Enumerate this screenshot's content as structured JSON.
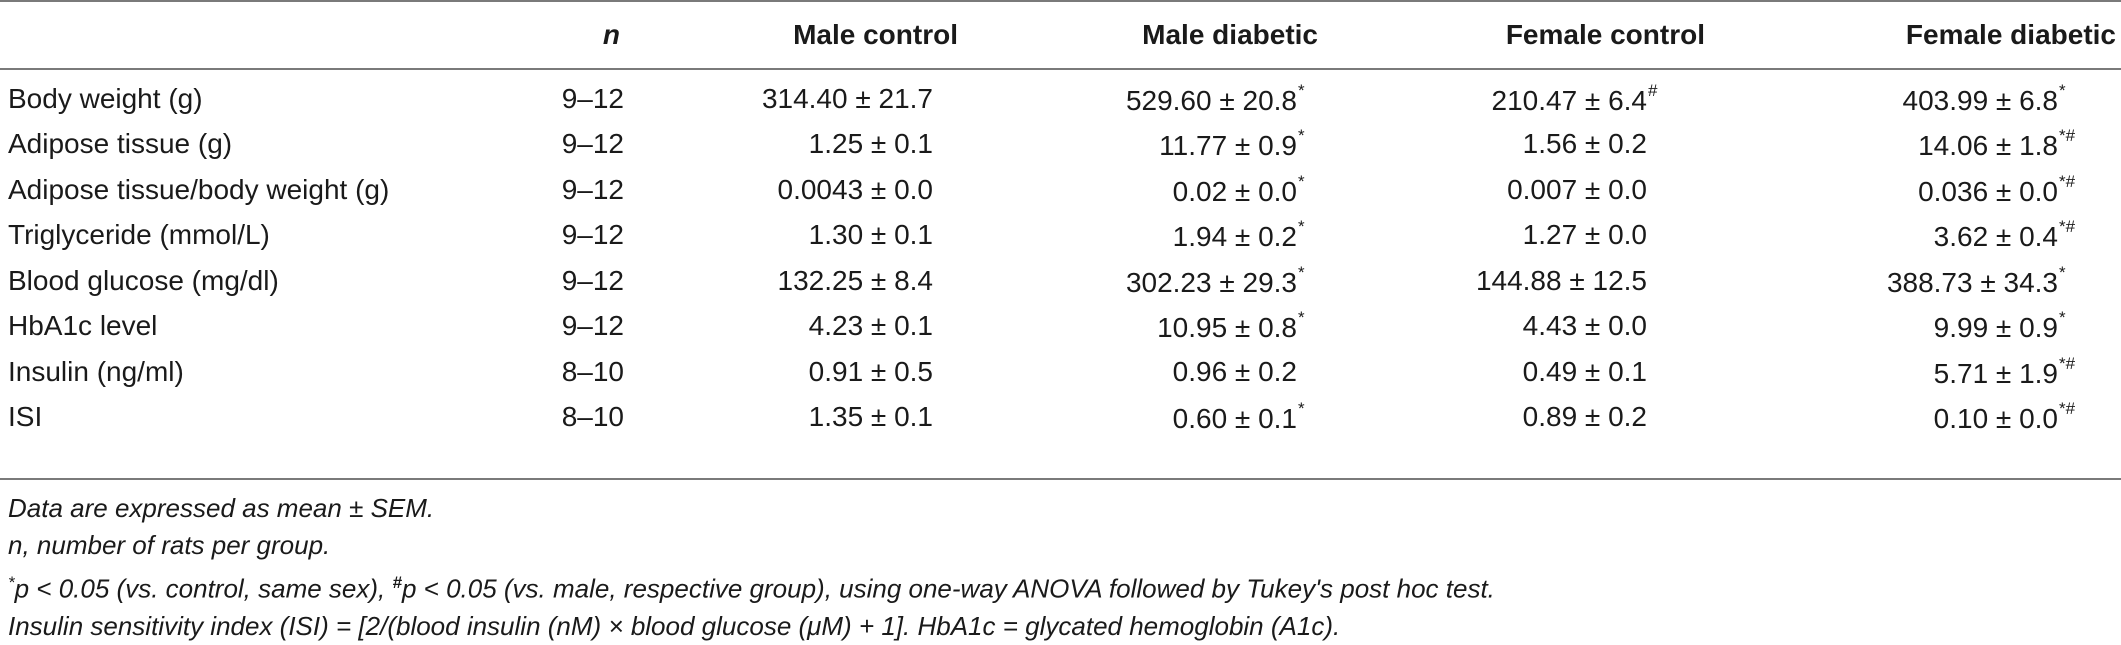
{
  "table": {
    "headers": [
      "",
      "n",
      "Male control",
      "Male diabetic",
      "Female control",
      "Female diabetic"
    ],
    "rows": [
      {
        "label": "Body weight (g)",
        "n": "9–12",
        "mc": "314.40 ± 21.7",
        "mc_mk": "",
        "md": "529.60 ± 20.8",
        "md_mk": "*",
        "fc": "210.47 ± 6.4",
        "fc_mk": "#",
        "fd": "403.99 ± 6.8",
        "fd_mk": "*"
      },
      {
        "label": "Adipose tissue (g)",
        "n": "9–12",
        "mc": "1.25 ± 0.1",
        "mc_mk": "",
        "md": "11.77 ± 0.9",
        "md_mk": "*",
        "fc": "1.56 ± 0.2",
        "fc_mk": "",
        "fd": "14.06 ± 1.8",
        "fd_mk": "*#"
      },
      {
        "label": "Adipose tissue/body weight (g)",
        "n": "9–12",
        "mc": "0.0043 ± 0.0",
        "mc_mk": "",
        "md": "0.02 ± 0.0",
        "md_mk": "*",
        "fc": "0.007 ± 0.0",
        "fc_mk": "",
        "fd": "0.036 ± 0.0",
        "fd_mk": "*#"
      },
      {
        "label": "Triglyceride (mmol/L)",
        "n": "9–12",
        "mc": "1.30 ± 0.1",
        "mc_mk": "",
        "md": "1.94 ± 0.2",
        "md_mk": "*",
        "fc": "1.27 ± 0.0",
        "fc_mk": "",
        "fd": "3.62 ± 0.4",
        "fd_mk": "*#"
      },
      {
        "label": "Blood glucose (mg/dl)",
        "n": "9–12",
        "mc": "132.25 ± 8.4",
        "mc_mk": "",
        "md": "302.23 ± 29.3",
        "md_mk": "*",
        "fc": "144.88 ± 12.5",
        "fc_mk": "",
        "fd": "388.73 ± 34.3",
        "fd_mk": "*"
      },
      {
        "label": "HbA1c level",
        "n": "9–12",
        "mc": "4.23 ± 0.1",
        "mc_mk": "",
        "md": "10.95 ± 0.8",
        "md_mk": "*",
        "fc": "4.43 ± 0.0",
        "fc_mk": "",
        "fd": "9.99 ± 0.9",
        "fd_mk": "*"
      },
      {
        "label": "Insulin (ng/ml)",
        "n": "8–10",
        "mc": "0.91 ± 0.5",
        "mc_mk": "",
        "md": "0.96 ± 0.2",
        "md_mk": "",
        "fc": "0.49 ± 0.1",
        "fc_mk": "",
        "fd": "5.71 ± 1.9",
        "fd_mk": "*#"
      },
      {
        "label": "ISI",
        "n": "8–10",
        "mc": "1.35 ± 0.1",
        "mc_mk": "",
        "md": "0.60 ± 0.1",
        "md_mk": "*",
        "fc": "0.89 ± 0.2",
        "fc_mk": "",
        "fd": "0.10 ± 0.0",
        "fd_mk": "*#"
      }
    ]
  },
  "footnotes": {
    "line1": "Data are expressed as mean ± SEM.",
    "line2": "n, number of rats per group.",
    "line3_star": "*",
    "line3_a": "p < 0.05 (vs. control, same sex), ",
    "line3_hash": "#",
    "line3_b": "p < 0.05 (vs. male, respective group), using one-way ANOVA followed by Tukey's post hoc test.",
    "line4": "Insulin sensitivity index (ISI) = [2/(blood insulin (nM) × blood glucose (μM) + 1]. HbA1c = glycated hemoglobin (A1c)."
  }
}
